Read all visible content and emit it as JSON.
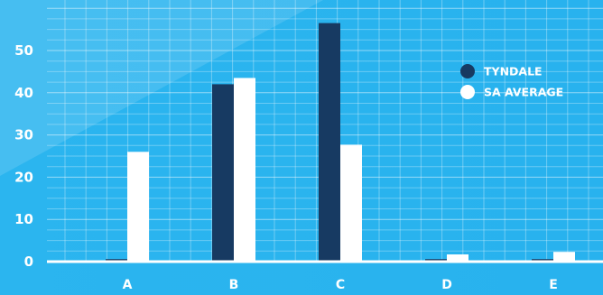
{
  "chart_data": {
    "type": "bar",
    "categories": [
      "A",
      "B",
      "C",
      "D",
      "E"
    ],
    "series": [
      {
        "name": "TYNDALE",
        "values": [
          0.6,
          42,
          56.5,
          0.6,
          0.6
        ],
        "color": "#173a62"
      },
      {
        "name": "SA AVERAGE",
        "values": [
          26,
          43.5,
          27.7,
          1.7,
          2.3
        ],
        "color": "#ffffff"
      }
    ],
    "yticks": [
      "0",
      "10",
      "20",
      "30",
      "40",
      "50"
    ],
    "ylim": [
      0,
      58
    ],
    "grid": true,
    "legend_position": "top-right",
    "background_color": "#2bb5ef",
    "title": "",
    "xlabel": "",
    "ylabel": ""
  }
}
